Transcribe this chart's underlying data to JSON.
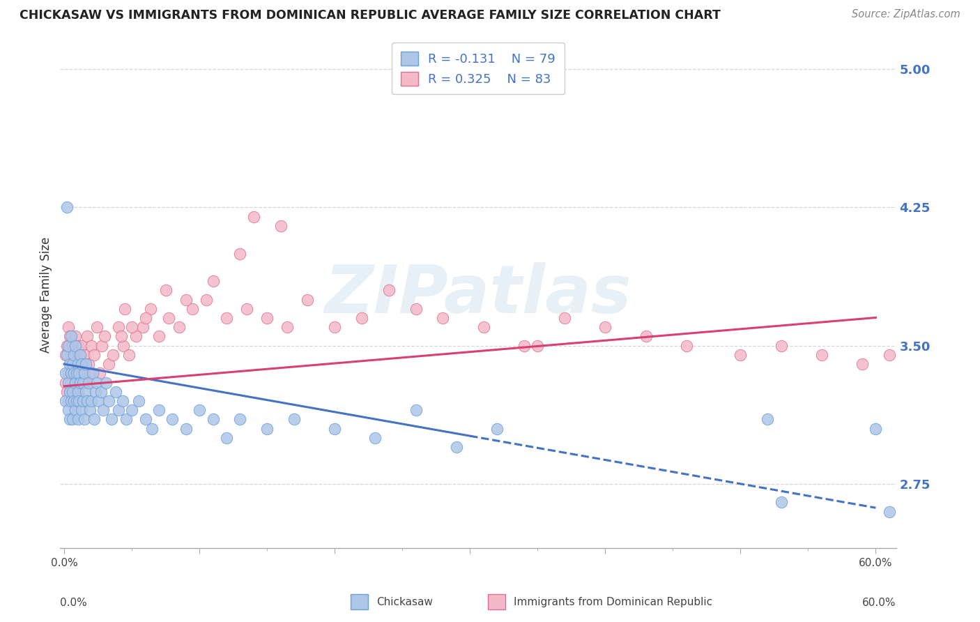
{
  "title": "CHICKASAW VS IMMIGRANTS FROM DOMINICAN REPUBLIC AVERAGE FAMILY SIZE CORRELATION CHART",
  "source": "Source: ZipAtlas.com",
  "ylabel": "Average Family Size",
  "y_ticks": [
    2.75,
    3.5,
    4.25,
    5.0
  ],
  "y_min": 2.4,
  "y_max": 5.15,
  "x_min": -0.003,
  "x_max": 0.615,
  "chickasaw_R": -0.131,
  "chickasaw_N": 79,
  "dr_R": 0.325,
  "dr_N": 83,
  "blue_color": "#aec6e8",
  "blue_edge_color": "#6a9fd8",
  "blue_line_color": "#4472c4",
  "pink_color": "#f4b8c8",
  "pink_edge_color": "#e07090",
  "pink_line_color": "#d94070",
  "bg_color": "#ffffff",
  "grid_color": "#cccccc",
  "tick_label_color": "#4472c4",
  "watermark_color": "#c5d8ec",
  "legend_border_color": "#cccccc",
  "bottom_label_color": "#444444",
  "title_color": "#222222",
  "source_color": "#888888",
  "chickasaw_x": [
    0.001,
    0.001,
    0.002,
    0.002,
    0.003,
    0.003,
    0.003,
    0.004,
    0.004,
    0.004,
    0.005,
    0.005,
    0.005,
    0.006,
    0.006,
    0.006,
    0.007,
    0.007,
    0.007,
    0.008,
    0.008,
    0.008,
    0.009,
    0.009,
    0.01,
    0.01,
    0.01,
    0.011,
    0.011,
    0.012,
    0.012,
    0.013,
    0.013,
    0.014,
    0.014,
    0.015,
    0.015,
    0.016,
    0.016,
    0.017,
    0.018,
    0.019,
    0.02,
    0.021,
    0.022,
    0.023,
    0.024,
    0.025,
    0.027,
    0.029,
    0.031,
    0.033,
    0.035,
    0.038,
    0.04,
    0.043,
    0.046,
    0.05,
    0.055,
    0.06,
    0.065,
    0.07,
    0.08,
    0.09,
    0.1,
    0.11,
    0.12,
    0.13,
    0.15,
    0.17,
    0.2,
    0.23,
    0.26,
    0.29,
    0.32,
    0.52,
    0.53,
    0.6,
    0.61
  ],
  "chickasaw_y": [
    3.35,
    3.2,
    4.25,
    3.45,
    3.3,
    3.15,
    3.5,
    3.4,
    3.25,
    3.1,
    3.35,
    3.2,
    3.55,
    3.4,
    3.25,
    3.1,
    3.35,
    3.2,
    3.45,
    3.3,
    3.15,
    3.5,
    3.35,
    3.2,
    3.4,
    3.25,
    3.1,
    3.35,
    3.2,
    3.45,
    3.3,
    3.4,
    3.15,
    3.3,
    3.2,
    3.35,
    3.1,
    3.25,
    3.4,
    3.2,
    3.3,
    3.15,
    3.2,
    3.35,
    3.1,
    3.25,
    3.3,
    3.2,
    3.25,
    3.15,
    3.3,
    3.2,
    3.1,
    3.25,
    3.15,
    3.2,
    3.1,
    3.15,
    3.2,
    3.1,
    3.05,
    3.15,
    3.1,
    3.05,
    3.15,
    3.1,
    3.0,
    3.1,
    3.05,
    3.1,
    3.05,
    3.0,
    3.15,
    2.95,
    3.05,
    3.1,
    2.65,
    3.05,
    2.6
  ],
  "dr_x": [
    0.001,
    0.001,
    0.002,
    0.002,
    0.003,
    0.003,
    0.003,
    0.004,
    0.004,
    0.004,
    0.005,
    0.005,
    0.006,
    0.006,
    0.007,
    0.007,
    0.008,
    0.008,
    0.009,
    0.009,
    0.01,
    0.01,
    0.011,
    0.011,
    0.012,
    0.013,
    0.014,
    0.015,
    0.016,
    0.017,
    0.018,
    0.019,
    0.02,
    0.022,
    0.024,
    0.026,
    0.028,
    0.03,
    0.033,
    0.036,
    0.04,
    0.044,
    0.048,
    0.053,
    0.058,
    0.064,
    0.07,
    0.077,
    0.085,
    0.095,
    0.105,
    0.12,
    0.135,
    0.15,
    0.165,
    0.18,
    0.2,
    0.22,
    0.24,
    0.26,
    0.28,
    0.31,
    0.34,
    0.37,
    0.4,
    0.43,
    0.46,
    0.5,
    0.53,
    0.56,
    0.59,
    0.61,
    0.14,
    0.16,
    0.075,
    0.09,
    0.11,
    0.13,
    0.35,
    0.06,
    0.05,
    0.045,
    0.042
  ],
  "dr_y": [
    3.3,
    3.45,
    3.5,
    3.25,
    3.6,
    3.35,
    3.2,
    3.55,
    3.4,
    3.25,
    3.45,
    3.3,
    3.5,
    3.35,
    3.4,
    3.25,
    3.55,
    3.3,
    3.45,
    3.35,
    3.5,
    3.25,
    3.45,
    3.35,
    3.4,
    3.5,
    3.35,
    3.45,
    3.3,
    3.55,
    3.4,
    3.35,
    3.5,
    3.45,
    3.6,
    3.35,
    3.5,
    3.55,
    3.4,
    3.45,
    3.6,
    3.5,
    3.45,
    3.55,
    3.6,
    3.7,
    3.55,
    3.65,
    3.6,
    3.7,
    3.75,
    3.65,
    3.7,
    3.65,
    3.6,
    3.75,
    3.6,
    3.65,
    3.8,
    3.7,
    3.65,
    3.6,
    3.5,
    3.65,
    3.6,
    3.55,
    3.5,
    3.45,
    3.5,
    3.45,
    3.4,
    3.45,
    4.2,
    4.15,
    3.8,
    3.75,
    3.85,
    4.0,
    3.5,
    3.65,
    3.6,
    3.7,
    3.55
  ],
  "chick_line_x_solid_end": 0.3,
  "chick_line_intercept": 3.4,
  "chick_line_slope": -1.3,
  "dr_line_intercept": 3.28,
  "dr_line_slope": 0.62
}
